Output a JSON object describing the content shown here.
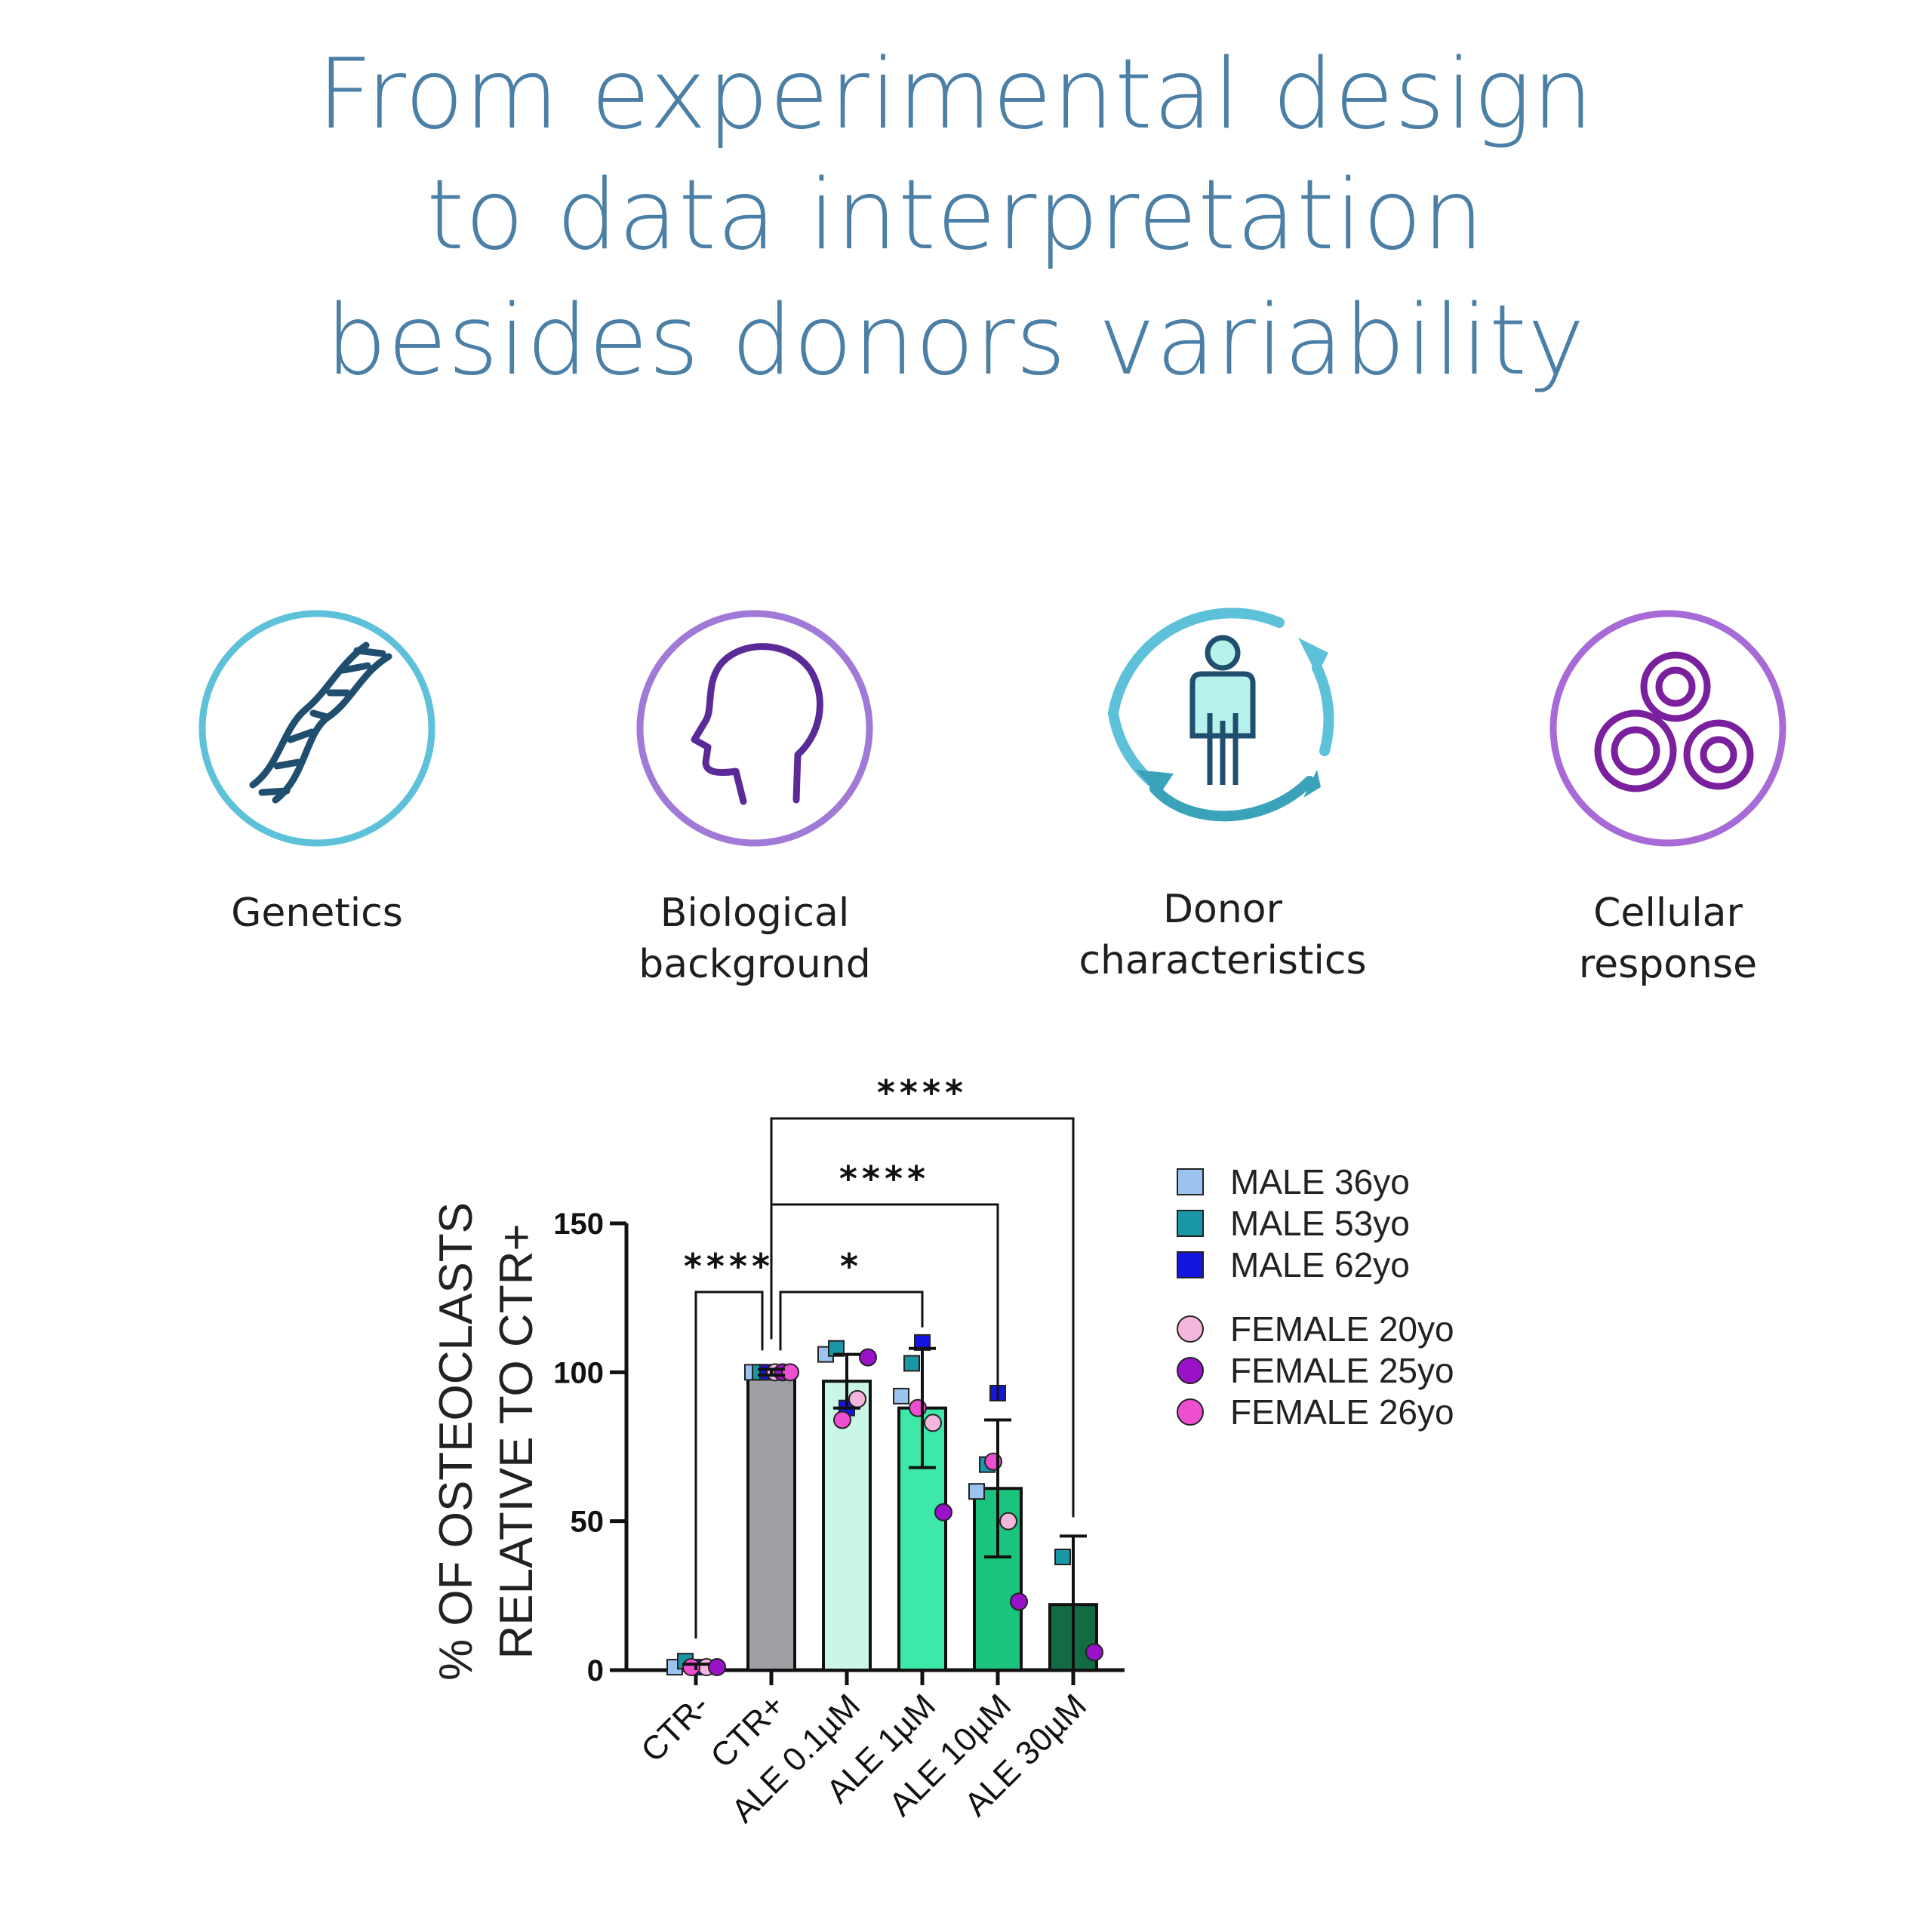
{
  "headline": {
    "line1": "From experimental design",
    "line2": "to data interpretation",
    "line3": "besides donors variability"
  },
  "factors": [
    {
      "icon": "dna-icon",
      "line1": "Genetics",
      "line2": "",
      "color": "#5cc1d9"
    },
    {
      "icon": "head-profile-icon",
      "line1": "Biological",
      "line2": "background",
      "color": "#a07ad6"
    },
    {
      "icon": "person-cycle-icon",
      "line1": "Donor",
      "line2": "characteristics",
      "color": "#4cb3c7"
    },
    {
      "icon": "cells-icon",
      "line1": "Cellular",
      "line2": "response",
      "color": "#9b59c9"
    }
  ],
  "chart_data": {
    "type": "bar",
    "ylabel_line1": "% OF OSTEOCLASTS",
    "ylabel_line2": "RELATIVE TO CTR+",
    "ylim": [
      0,
      150
    ],
    "yticks": [
      "0",
      "50",
      "100",
      "150"
    ],
    "categories": [
      "CTR-",
      "CTR+",
      "ALE 0.1µM",
      "ALE 1µM",
      "ALE 10µM",
      "ALE 30µM"
    ],
    "means": [
      1,
      100,
      97,
      88,
      61,
      22
    ],
    "sd": [
      1,
      1,
      9,
      20,
      23,
      23
    ],
    "bar_colors": [
      "#ffffff",
      "#a0a0a4",
      "#c9f6e5",
      "#3ee8a8",
      "#1bc47d",
      "#136b43"
    ],
    "donors": [
      {
        "name": "MALE 36yo",
        "shape": "square",
        "color": "#9cc3f0",
        "values": [
          1,
          100,
          106,
          92,
          60,
          null
        ]
      },
      {
        "name": "MALE 53yo",
        "shape": "square",
        "color": "#1a97a6",
        "values": [
          3,
          100,
          108,
          103,
          69,
          38
        ]
      },
      {
        "name": "MALE 62yo",
        "shape": "square",
        "color": "#1515e0",
        "values": [
          1,
          100,
          88,
          110,
          93,
          null
        ]
      },
      {
        "name": "FEMALE 20yo",
        "shape": "circle",
        "color": "#f4b6dc",
        "values": [
          1,
          100,
          91,
          83,
          50,
          null
        ]
      },
      {
        "name": "FEMALE 25yo",
        "shape": "circle",
        "color": "#9a12c8",
        "values": [
          1,
          100,
          105,
          53,
          23,
          6
        ]
      },
      {
        "name": "FEMALE 26yo",
        "shape": "circle",
        "color": "#ee4fd0",
        "values": [
          1,
          100,
          84,
          88,
          70,
          null
        ]
      }
    ],
    "significance": [
      {
        "from": 0,
        "to": 1,
        "label": "****"
      },
      {
        "from": 1,
        "to": 3,
        "label": "*"
      },
      {
        "from": 1,
        "to": 4,
        "label": "****"
      },
      {
        "from": 1,
        "to": 5,
        "label": "****"
      }
    ],
    "legend_position": "right"
  }
}
